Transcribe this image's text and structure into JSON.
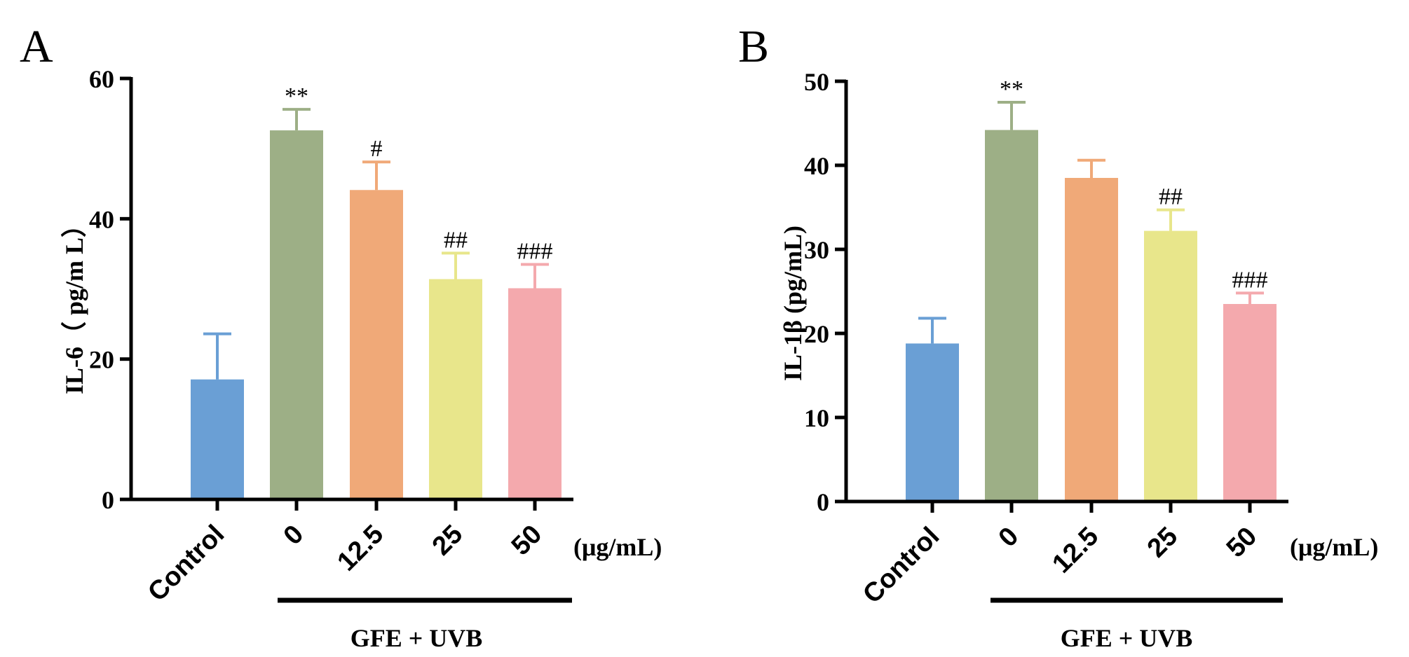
{
  "chart_data": [
    {
      "panel": "A",
      "type": "bar",
      "categories": [
        "Control",
        "0",
        "12.5",
        "25",
        "50"
      ],
      "values": [
        17.1,
        52.6,
        44.1,
        31.4,
        30.1
      ],
      "errors": [
        6.5,
        3.0,
        4.0,
        3.7,
        3.4
      ],
      "significance": [
        "",
        "**",
        "#",
        "##",
        "###"
      ],
      "colors": [
        "#6a9fd5",
        "#9daf86",
        "#f0a978",
        "#e8e68b",
        "#f4a9ad"
      ],
      "ylabel": "IL-6（ pg/m L）",
      "ylim": [
        0,
        60
      ],
      "yticks": [
        0,
        20,
        40,
        60
      ],
      "unit_label": "(μg/mL)",
      "group_label": "GFE + UVB"
    },
    {
      "panel": "B",
      "type": "bar",
      "categories": [
        "Control",
        "0",
        "12.5",
        "25",
        "50"
      ],
      "values": [
        18.8,
        44.2,
        38.5,
        32.2,
        23.5
      ],
      "errors": [
        3.0,
        3.3,
        2.1,
        2.5,
        1.3
      ],
      "significance": [
        "",
        "**",
        "",
        "##",
        "###"
      ],
      "colors": [
        "#6a9fd5",
        "#9daf86",
        "#f0a978",
        "#e8e68b",
        "#f4a9ad"
      ],
      "ylabel": "IL-1β (pg/mL)",
      "ylim": [
        0,
        50
      ],
      "yticks": [
        0,
        10,
        20,
        30,
        40,
        50
      ],
      "unit_label": "(μg/mL)",
      "group_label": "GFE + UVB"
    }
  ]
}
